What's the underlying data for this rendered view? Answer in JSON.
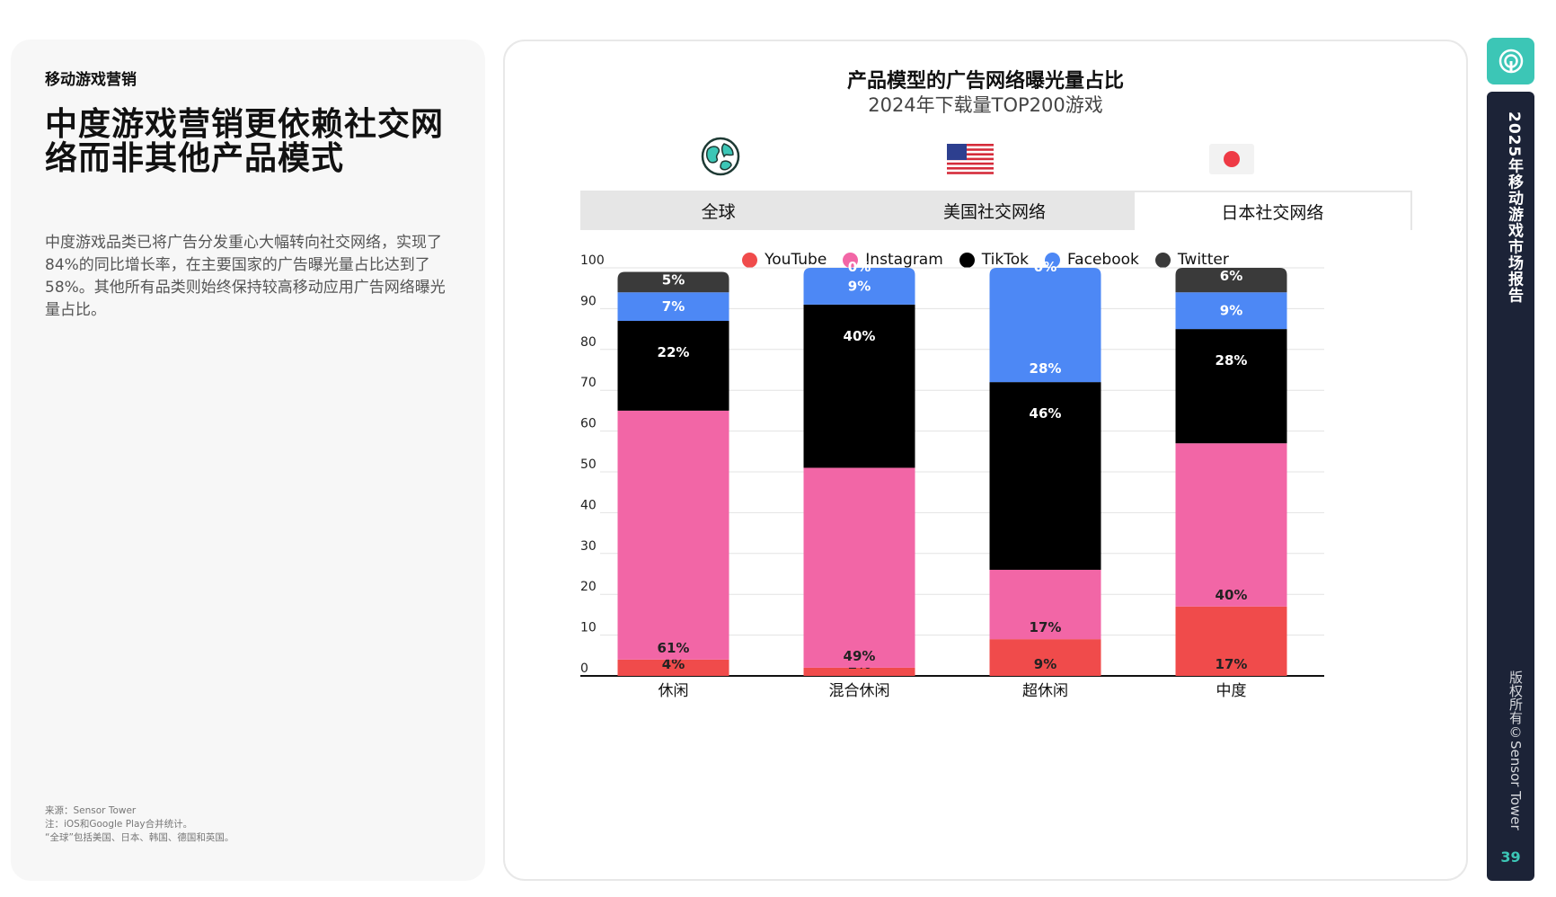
{
  "left_panel": {
    "kicker": "移动游戏营销",
    "headline": "中度游戏营销更依赖社交网络而非其他产品模式",
    "body": "中度游戏品类已将广告分发重心大幅转向社交网络，实现了84%的同比增长率，在主要国家的广告曝光量占比达到了58%。其他所有品类则始终保持较高移动应用广告网络曝光量占比。",
    "footnotes": [
      "来源：Sensor Tower",
      "注：iOS和Google Play合并统计。",
      "“全球”包括美国、日本、韩国、德国和英国。"
    ]
  },
  "region_icons": [
    "globe-icon",
    "us-flag-icon",
    "japan-flag-icon"
  ],
  "tabs": [
    {
      "label": "全球",
      "active": false
    },
    {
      "label": "美国社交网络",
      "active": false
    },
    {
      "label": "日本社交网络",
      "active": true
    }
  ],
  "sidebar": {
    "title": "2025年移动游戏市场报告",
    "copyright": "版权所有©Sensor Tower",
    "page_number": "39"
  },
  "colors": {
    "youtube": "#f04b4b",
    "instagram": "#f266a6",
    "tiktok": "#000000",
    "facebook": "#4d88f5",
    "twitter": "#3a3a3a",
    "accent": "#3cc6b6",
    "sidebar": "#1c2337"
  },
  "chart_data": {
    "type": "bar",
    "stacked": true,
    "title": "产品模型的广告网络曝光量占比",
    "subtitle": "2024年下载量TOP200游戏",
    "categories": [
      "休闲",
      "混合休闲",
      "超休闲",
      "中度"
    ],
    "series": [
      {
        "name": "YouTube",
        "values": [
          4,
          2,
          9,
          17
        ],
        "labels": [
          "4%",
          "2%",
          "9%",
          "17%"
        ]
      },
      {
        "name": "Instagram",
        "values": [
          61,
          49,
          17,
          40
        ],
        "labels": [
          "61%",
          "49%",
          "17%",
          "40%"
        ]
      },
      {
        "name": "TikTok",
        "values": [
          22,
          40,
          46,
          28
        ],
        "labels": [
          "22%",
          "40%",
          "46%",
          "28%"
        ]
      },
      {
        "name": "Facebook",
        "values": [
          7,
          9,
          28,
          9
        ],
        "labels": [
          "7%",
          "9%",
          "28%",
          "9%"
        ]
      },
      {
        "name": "Twitter",
        "values": [
          5,
          0,
          0,
          6
        ],
        "labels": [
          "5%",
          "0%",
          "0%",
          "6%"
        ]
      }
    ],
    "ylim": [
      0,
      100
    ],
    "yticks": [
      0,
      10,
      20,
      30,
      40,
      50,
      60,
      70,
      80,
      90,
      100
    ],
    "grid": true,
    "legend_position": "top"
  }
}
